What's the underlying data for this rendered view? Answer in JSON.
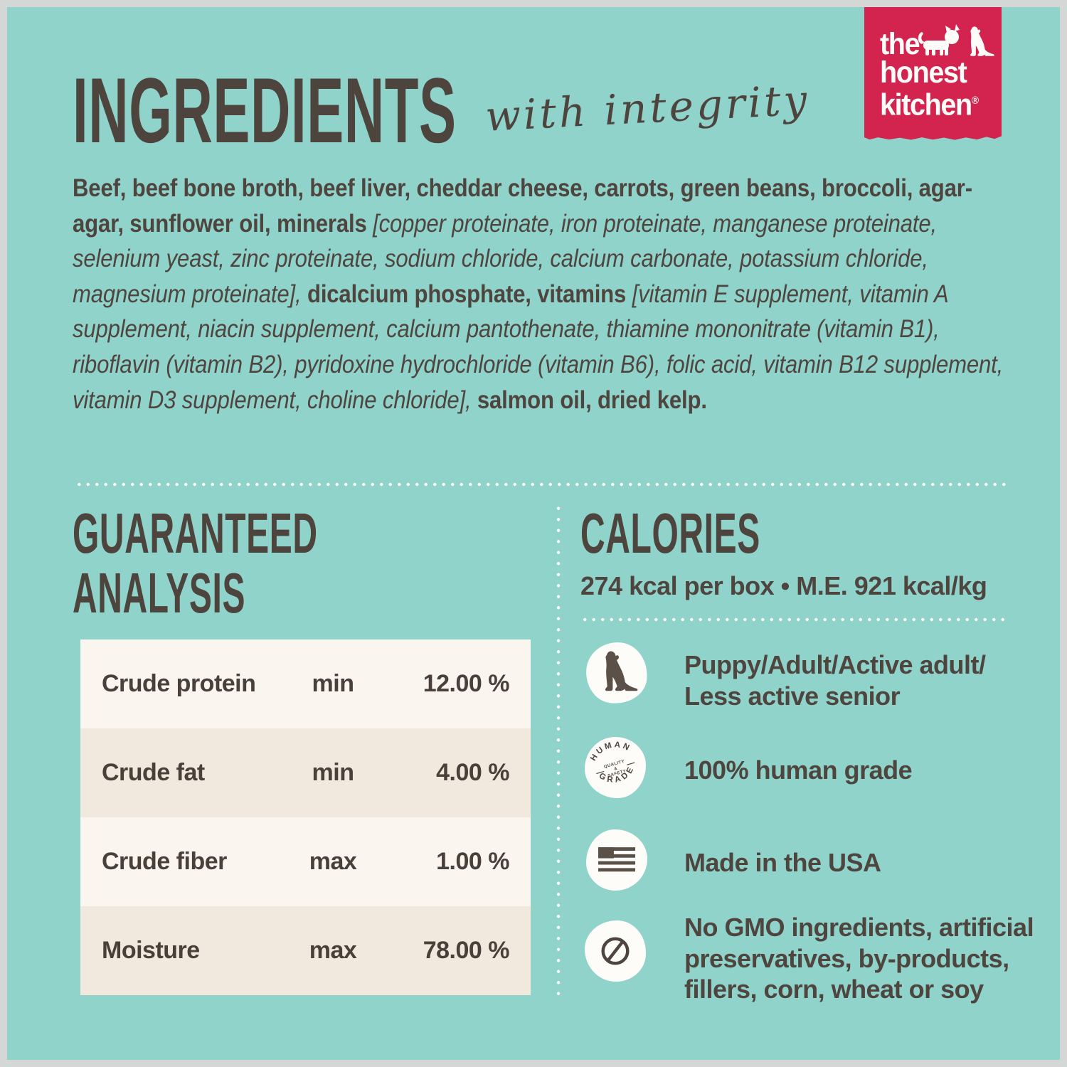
{
  "page": {
    "background_teal": "#90d3cb",
    "frame_gray": "#d4d7d5",
    "text_dark": "#4f453f",
    "brand_red": "#d3234f",
    "panel_row_light": "#faf5ee",
    "panel_row_dark": "#f2e9de",
    "dot_white": "#fdfcf8"
  },
  "header": {
    "title": "INGREDIENTS",
    "tagline": "with integrity"
  },
  "logo": {
    "line1": "the",
    "line2": "honest",
    "line3": "kitchen",
    "registered": "®",
    "icons": [
      "cat-icon",
      "dog-icon"
    ]
  },
  "ingredients": {
    "segments": [
      {
        "style": "b",
        "text": "Beef, beef bone broth, beef liver, cheddar cheese, carrots, green beans, broccoli, agar-agar, sunflower oil, minerals "
      },
      {
        "style": "i",
        "text": "[copper proteinate, iron proteinate, manganese proteinate, selenium yeast, zinc proteinate, sodium chloride, calcium carbonate, potassium chloride, magnesium proteinate], "
      },
      {
        "style": "b",
        "text": "dicalcium phosphate, vitamins "
      },
      {
        "style": "i",
        "text": "[vitamin E supplement, vitamin A supplement, niacin supplement, calcium pantothenate, thiamine mononitrate (vitamin B1), riboflavin (vitamin B2), pyridoxine hydrochloride (vitamin B6), folic acid, vitamin B12 supplement, vitamin D3 supplement, choline chloride], "
      },
      {
        "style": "b",
        "text": "salmon oil, dried kelp."
      }
    ]
  },
  "guaranteed_analysis": {
    "title_line1": "GUARANTEED",
    "title_line2": "ANALYSIS",
    "rows": [
      {
        "label": "Crude protein",
        "qualifier": "min",
        "value": "12.00 %"
      },
      {
        "label": "Crude fat",
        "qualifier": "min",
        "value": "4.00 %"
      },
      {
        "label": "Crude fiber",
        "qualifier": "max",
        "value": "1.00 %"
      },
      {
        "label": "Moisture",
        "qualifier": "max",
        "value": "78.00 %"
      }
    ]
  },
  "calories": {
    "title": "CALORIES",
    "detail": "274 kcal per box • M.E. 921 kcal/kg"
  },
  "features": [
    {
      "icon": "dog-icon",
      "lines": [
        "Puppy/Adult/Active adult/",
        "Less active senior"
      ]
    },
    {
      "icon": "human-grade-badge-icon",
      "lines": [
        "100% human grade"
      ],
      "badge": {
        "top": "HUMAN",
        "bottom": "GRADE",
        "center1": "QUALITY",
        "center2": "&",
        "center3": "SAFETY"
      }
    },
    {
      "icon": "usa-flag-icon",
      "lines": [
        "Made in the USA"
      ]
    },
    {
      "icon": "no-gmo-icon",
      "lines": [
        "No GMO ingredients, artificial",
        "preservatives, by-products,",
        "fillers, corn, wheat or soy"
      ]
    }
  ]
}
